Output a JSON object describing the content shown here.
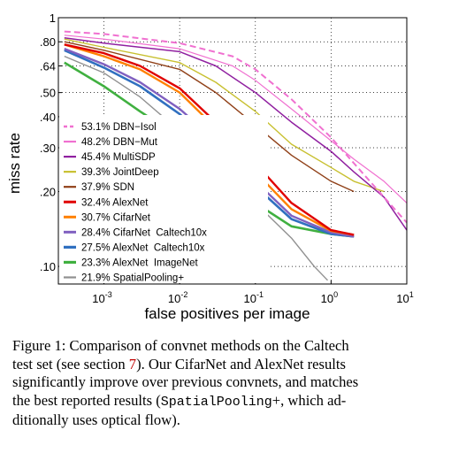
{
  "chart_data": {
    "type": "line",
    "xlabel": "false positives per image",
    "ylabel": "miss rate",
    "x_scale": "log",
    "y_scale": "log",
    "xlim": [
      0.00025,
      10
    ],
    "ylim": [
      0.085,
      1
    ],
    "x_ticks": [
      {
        "value": 0.001,
        "base": "10",
        "exp": "-3"
      },
      {
        "value": 0.01,
        "base": "10",
        "exp": "-2"
      },
      {
        "value": 0.1,
        "base": "10",
        "exp": "-1"
      },
      {
        "value": 1,
        "base": "10",
        "exp": "0"
      },
      {
        "value": 10,
        "base": "10",
        "exp": "1"
      }
    ],
    "y_ticks": [
      {
        "value": 1,
        "label": "1"
      },
      {
        "value": 0.8,
        "label": ".80"
      },
      {
        "value": 0.64,
        "label": ".64"
      },
      {
        "value": 0.5,
        "label": ".50"
      },
      {
        "value": 0.4,
        "label": ".40"
      },
      {
        "value": 0.3,
        "label": ".30"
      },
      {
        "value": 0.2,
        "label": ".20"
      },
      {
        "value": 0.1,
        "label": ".10"
      }
    ],
    "grid": true,
    "legend_position": "bottom-left",
    "series": [
      {
        "name": "53.1% DBN−Isol",
        "color": "#f070d0",
        "dash": "7,4",
        "width": 2.0,
        "x": [
          0.0003,
          0.001,
          0.01,
          0.05,
          0.1,
          0.3,
          1,
          2,
          5,
          10
        ],
        "y": [
          0.88,
          0.86,
          0.79,
          0.7,
          0.62,
          0.47,
          0.33,
          0.26,
          0.19,
          0.15
        ]
      },
      {
        "name": "48.2% DBN−Mut",
        "color": "#f070d0",
        "dash": "",
        "width": 1.2,
        "x": [
          0.0003,
          0.001,
          0.01,
          0.05,
          0.1,
          0.3,
          1,
          2,
          5,
          10
        ],
        "y": [
          0.85,
          0.82,
          0.75,
          0.64,
          0.56,
          0.43,
          0.32,
          0.27,
          0.22,
          0.18
        ]
      },
      {
        "name": "45.4% MultiSDP",
        "color": "#9020a0",
        "dash": "",
        "width": 1.5,
        "x": [
          0.0003,
          0.001,
          0.01,
          0.03,
          0.1,
          0.3,
          1,
          2,
          5,
          10
        ],
        "y": [
          0.83,
          0.79,
          0.73,
          0.64,
          0.5,
          0.38,
          0.29,
          0.24,
          0.19,
          0.14
        ]
      },
      {
        "name": "39.3% JointDeep",
        "color": "#c8c030",
        "dash": "",
        "width": 1.4,
        "x": [
          0.0003,
          0.001,
          0.01,
          0.03,
          0.1,
          0.3,
          1,
          2,
          5
        ],
        "y": [
          0.82,
          0.76,
          0.66,
          0.55,
          0.42,
          0.31,
          0.25,
          0.22,
          0.2
        ]
      },
      {
        "name": "37.9% SDN",
        "color": "#904018",
        "dash": "",
        "width": 1.4,
        "x": [
          0.0003,
          0.001,
          0.01,
          0.03,
          0.1,
          0.3,
          1,
          2
        ],
        "y": [
          0.8,
          0.74,
          0.62,
          0.5,
          0.37,
          0.28,
          0.22,
          0.2
        ]
      },
      {
        "name": "32.4% AlexNet",
        "color": "#e00000",
        "dash": "",
        "width": 2.4,
        "x": [
          0.0003,
          0.001,
          0.003,
          0.01,
          0.03,
          0.1,
          0.3,
          1,
          2
        ],
        "y": [
          0.78,
          0.72,
          0.64,
          0.52,
          0.38,
          0.26,
          0.18,
          0.14,
          0.134
        ]
      },
      {
        "name": "30.7% CifarNet",
        "color": "#ff8000",
        "dash": "",
        "width": 2.4,
        "x": [
          0.0003,
          0.001,
          0.003,
          0.01,
          0.03,
          0.1,
          0.3,
          1,
          2
        ],
        "y": [
          0.78,
          0.7,
          0.62,
          0.5,
          0.36,
          0.24,
          0.17,
          0.139,
          0.134
        ]
      },
      {
        "name": "28.4% CifarNet  Caltech10x",
        "color": "#8060c0",
        "dash": "",
        "width": 2.4,
        "x": [
          0.0003,
          0.001,
          0.003,
          0.01,
          0.03,
          0.1,
          0.3,
          1,
          2
        ],
        "y": [
          0.75,
          0.65,
          0.55,
          0.43,
          0.32,
          0.22,
          0.16,
          0.137,
          0.132
        ]
      },
      {
        "name": "27.5% AlexNet  Caltech10x",
        "color": "#3070c0",
        "dash": "",
        "width": 2.6,
        "x": [
          0.0003,
          0.001,
          0.003,
          0.01,
          0.03,
          0.1,
          0.3,
          1,
          2
        ],
        "y": [
          0.74,
          0.63,
          0.53,
          0.41,
          0.3,
          0.21,
          0.155,
          0.135,
          0.132
        ]
      },
      {
        "name": "23.3% AlexNet  ImageNet",
        "color": "#40b040",
        "dash": "",
        "width": 2.6,
        "x": [
          0.0003,
          0.001,
          0.003,
          0.01,
          0.03,
          0.1,
          0.3,
          1,
          2
        ],
        "y": [
          0.66,
          0.53,
          0.42,
          0.33,
          0.25,
          0.18,
          0.145,
          0.135,
          0.132
        ]
      },
      {
        "name": "21.9% SpatialPooling+",
        "color": "#909090",
        "dash": "",
        "width": 1.4,
        "x": [
          0.0003,
          0.001,
          0.003,
          0.01,
          0.03,
          0.1,
          0.3,
          0.6,
          0.9
        ],
        "y": [
          0.7,
          0.6,
          0.48,
          0.35,
          0.26,
          0.18,
          0.13,
          0.1,
          0.088
        ]
      }
    ]
  },
  "caption": {
    "lines": [
      [
        {
          "t": "Figure 1:  Comparison of convnet methods on the Caltech",
          "s": ""
        }
      ],
      [
        {
          "t": "test set (see section ",
          "s": ""
        },
        {
          "t": "7",
          "s": "ref"
        },
        {
          "t": ").  Our CifarNet and AlexNet results",
          "s": ""
        }
      ],
      [
        {
          "t": "significantly improve over previous convnets, and matches",
          "s": ""
        }
      ],
      [
        {
          "t": "the best reported results (",
          "s": ""
        },
        {
          "t": "SpatialPooling",
          "s": "mono"
        },
        {
          "t": "+, which ad-",
          "s": ""
        }
      ],
      [
        {
          "t": "ditionally uses optical flow).",
          "s": ""
        }
      ]
    ]
  }
}
